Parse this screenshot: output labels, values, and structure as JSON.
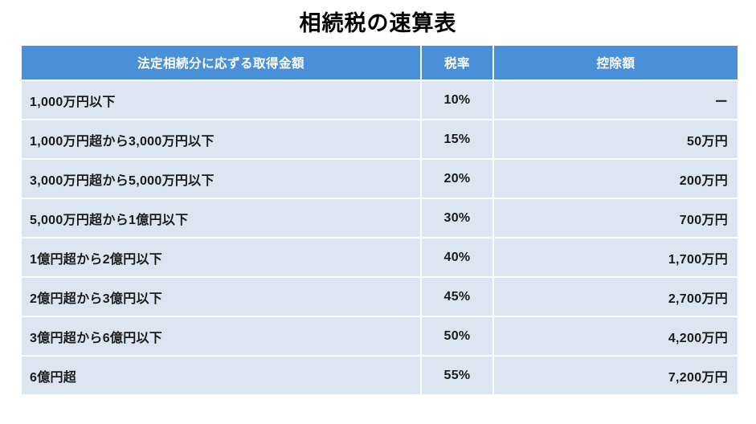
{
  "title": "相続税の速算表",
  "colors": {
    "header_bg": "#4A90D8",
    "row_bg": "#DCE6F2",
    "header_text": "#FFFFFF",
    "body_text": "#1A1A1A"
  },
  "chart_data": {
    "type": "table",
    "title": "相続税の速算表",
    "columns": [
      "法定相続分に応ずる取得金額",
      "税率",
      "控除額"
    ],
    "rows": [
      [
        "1,000万円以下",
        "10%",
        "ー"
      ],
      [
        "1,000万円超から3,000万円以下",
        "15%",
        "50万円"
      ],
      [
        "3,000万円超から5,000万円以下",
        "20%",
        "200万円"
      ],
      [
        "5,000万円超から1億円以下",
        "30%",
        "700万円"
      ],
      [
        "1億円超から2億円以下",
        "40%",
        "1,700万円"
      ],
      [
        "2億円超から3億円以下",
        "45%",
        "2,700万円"
      ],
      [
        "3億円超から6億円以下",
        "50%",
        "4,200万円"
      ],
      [
        "6億円超",
        "55%",
        "7,200万円"
      ]
    ]
  }
}
